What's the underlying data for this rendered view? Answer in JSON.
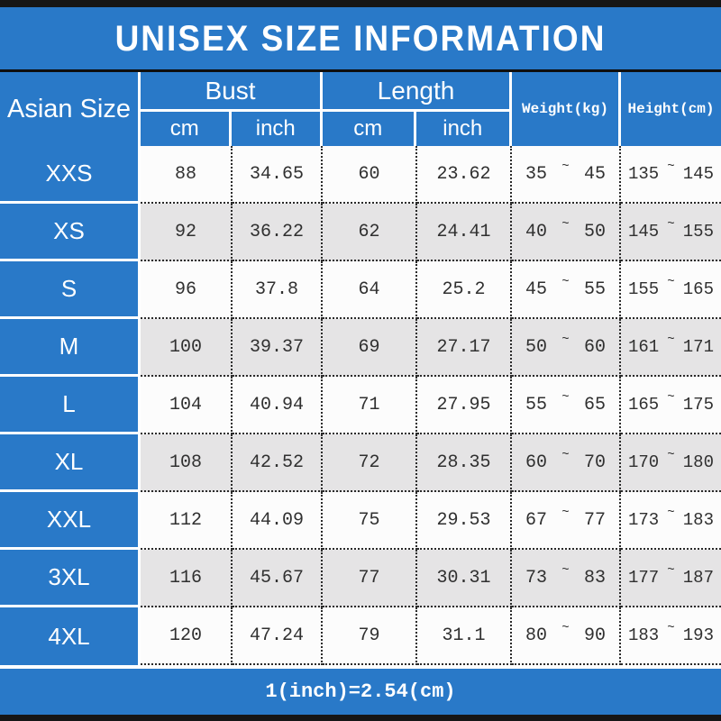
{
  "title": "UNISEX SIZE INFORMATION",
  "footer_note": "1(inch)=2.54(cm)",
  "colors": {
    "header_blue": "#2979C8",
    "alt_row_gray": "#E5E4E5",
    "frame_bar_black": "#161616",
    "text_white": "#FFFFFF",
    "data_text": "#303030"
  },
  "table": {
    "size_header": "Asian Size",
    "groups": [
      {
        "label": "Bust",
        "sub": [
          "cm",
          "inch"
        ]
      },
      {
        "label": "Length",
        "sub": [
          "cm",
          "inch"
        ]
      }
    ],
    "weight_header": "Weight(kg)",
    "height_header": "Height(cm)",
    "tilde": "~",
    "rows": [
      {
        "size": "XXS",
        "bust_cm": "88",
        "bust_inch": "34.65",
        "length_cm": "60",
        "length_inch": "23.62",
        "weight": [
          "35",
          "45"
        ],
        "height": [
          "135",
          "145"
        ]
      },
      {
        "size": "XS",
        "bust_cm": "92",
        "bust_inch": "36.22",
        "length_cm": "62",
        "length_inch": "24.41",
        "weight": [
          "40",
          "50"
        ],
        "height": [
          "145",
          "155"
        ]
      },
      {
        "size": "S",
        "bust_cm": "96",
        "bust_inch": "37.8",
        "length_cm": "64",
        "length_inch": "25.2",
        "weight": [
          "45",
          "55"
        ],
        "height": [
          "155",
          "165"
        ]
      },
      {
        "size": "M",
        "bust_cm": "100",
        "bust_inch": "39.37",
        "length_cm": "69",
        "length_inch": "27.17",
        "weight": [
          "50",
          "60"
        ],
        "height": [
          "161",
          "171"
        ]
      },
      {
        "size": "L",
        "bust_cm": "104",
        "bust_inch": "40.94",
        "length_cm": "71",
        "length_inch": "27.95",
        "weight": [
          "55",
          "65"
        ],
        "height": [
          "165",
          "175"
        ]
      },
      {
        "size": "XL",
        "bust_cm": "108",
        "bust_inch": "42.52",
        "length_cm": "72",
        "length_inch": "28.35",
        "weight": [
          "60",
          "70"
        ],
        "height": [
          "170",
          "180"
        ]
      },
      {
        "size": "XXL",
        "bust_cm": "112",
        "bust_inch": "44.09",
        "length_cm": "75",
        "length_inch": "29.53",
        "weight": [
          "67",
          "77"
        ],
        "height": [
          "173",
          "183"
        ]
      },
      {
        "size": "3XL",
        "bust_cm": "116",
        "bust_inch": "45.67",
        "length_cm": "77",
        "length_inch": "30.31",
        "weight": [
          "73",
          "83"
        ],
        "height": [
          "177",
          "187"
        ]
      },
      {
        "size": "4XL",
        "bust_cm": "120",
        "bust_inch": "47.24",
        "length_cm": "79",
        "length_inch": "31.1",
        "weight": [
          "80",
          "90"
        ],
        "height": [
          "183",
          "193"
        ]
      }
    ]
  }
}
